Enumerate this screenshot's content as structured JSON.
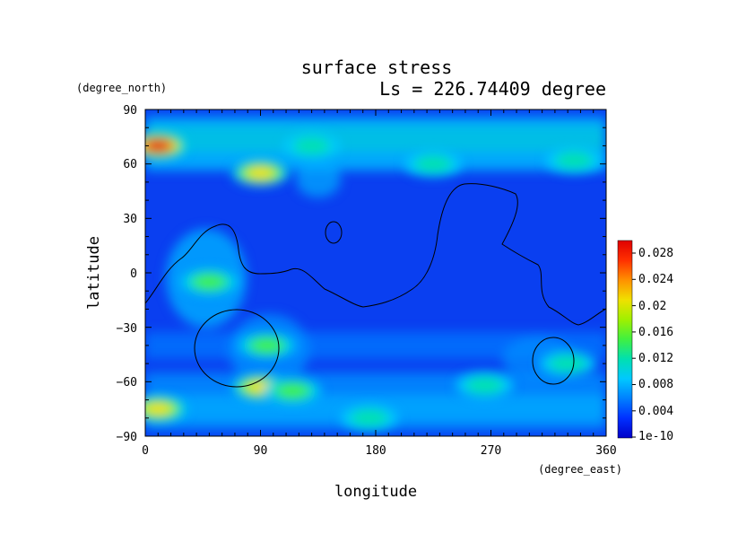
{
  "chart_data": {
    "type": "heatmap",
    "title": "surface stress",
    "subtitle": "Ls = 226.74409 degree",
    "xlabel": "longitude",
    "ylabel": "latitude",
    "x_units": "(degree_east)",
    "y_units": "(degree_north)",
    "xlim": [
      0,
      360
    ],
    "ylim": [
      -90,
      90
    ],
    "xticks": [
      "0",
      "90",
      "180",
      "270",
      "360"
    ],
    "yticks": [
      "90",
      "60",
      "30",
      "0",
      "−30",
      "−60",
      "−90"
    ],
    "colorbar": {
      "range": [
        0,
        0.03
      ],
      "labels": [
        "0.028",
        "0.024",
        "0.02",
        "0.016",
        "0.012",
        "0.008",
        "0.004",
        "1e-10"
      ]
    },
    "hotspots": [
      {
        "lon": 10,
        "lat": 70,
        "value": 0.03
      },
      {
        "lon": 90,
        "lat": 55,
        "value": 0.022
      },
      {
        "lon": 130,
        "lat": 70,
        "value": 0.013
      },
      {
        "lon": 225,
        "lat": 60,
        "value": 0.012
      },
      {
        "lon": 335,
        "lat": 62,
        "value": 0.013
      },
      {
        "lon": 50,
        "lat": -5,
        "value": 0.014
      },
      {
        "lon": 95,
        "lat": -40,
        "value": 0.014
      },
      {
        "lon": 90,
        "lat": -63,
        "value": 0.02
      },
      {
        "lon": 115,
        "lat": -65,
        "value": 0.016
      },
      {
        "lon": 175,
        "lat": -80,
        "value": 0.013
      },
      {
        "lon": 10,
        "lat": -75,
        "value": 0.02
      },
      {
        "lon": 265,
        "lat": -62,
        "value": 0.013
      },
      {
        "lon": 330,
        "lat": -50,
        "value": 0.012
      }
    ]
  },
  "colors": {
    "background": "#ffffff",
    "colormap": [
      "#0000c8",
      "#0030ff",
      "#0080ff",
      "#00c8ff",
      "#00e0b0",
      "#40f040",
      "#a0f000",
      "#f0e000",
      "#ff9000",
      "#ff3000",
      "#e00000"
    ]
  }
}
